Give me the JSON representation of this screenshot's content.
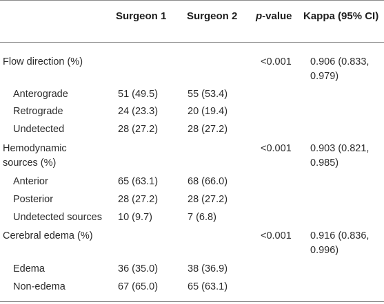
{
  "header": {
    "surgeon1": "Surgeon 1",
    "surgeon2": "Surgeon 2",
    "pvalue_italic": "p",
    "pvalue_rest": "-value",
    "kappa": "Kappa (95% CI)"
  },
  "rows": [
    {
      "label": "Flow direction (%)",
      "p": "<0.001",
      "kappa_line1": "0.906 (0.833,",
      "kappa_line2": "0.979)"
    },
    {
      "label": "Anterograde",
      "s1": "51 (49.5)",
      "s2": "55 (53.4)"
    },
    {
      "label": "Retrograde",
      "s1": "24 (23.3)",
      "s2": "20 (19.4)"
    },
    {
      "label": "Undetected",
      "s1": "28 (27.2)",
      "s2": "28 (27.2)"
    },
    {
      "label_line1": "Hemodynamic",
      "label_line2": "sources (%)",
      "p": "<0.001",
      "kappa_line1": "0.903 (0.821,",
      "kappa_line2": "0.985)"
    },
    {
      "label": "Anterior",
      "s1": "65 (63.1)",
      "s2": "68 (66.0)"
    },
    {
      "label": "Posterior",
      "s1": "28 (27.2)",
      "s2": "28 (27.2)"
    },
    {
      "label": "Undetected sources",
      "s1": "10 (9.7)",
      "s2": "7 (6.8)"
    },
    {
      "label": "Cerebral edema (%)",
      "p": "<0.001",
      "kappa_line1": "0.916 (0.836,",
      "kappa_line2": "0.996)"
    },
    {
      "label": "Edema",
      "s1": "36 (35.0)",
      "s2": "38 (36.9)"
    },
    {
      "label": "Non-edema",
      "s1": "67 (65.0)",
      "s2": "65 (63.1)"
    }
  ]
}
